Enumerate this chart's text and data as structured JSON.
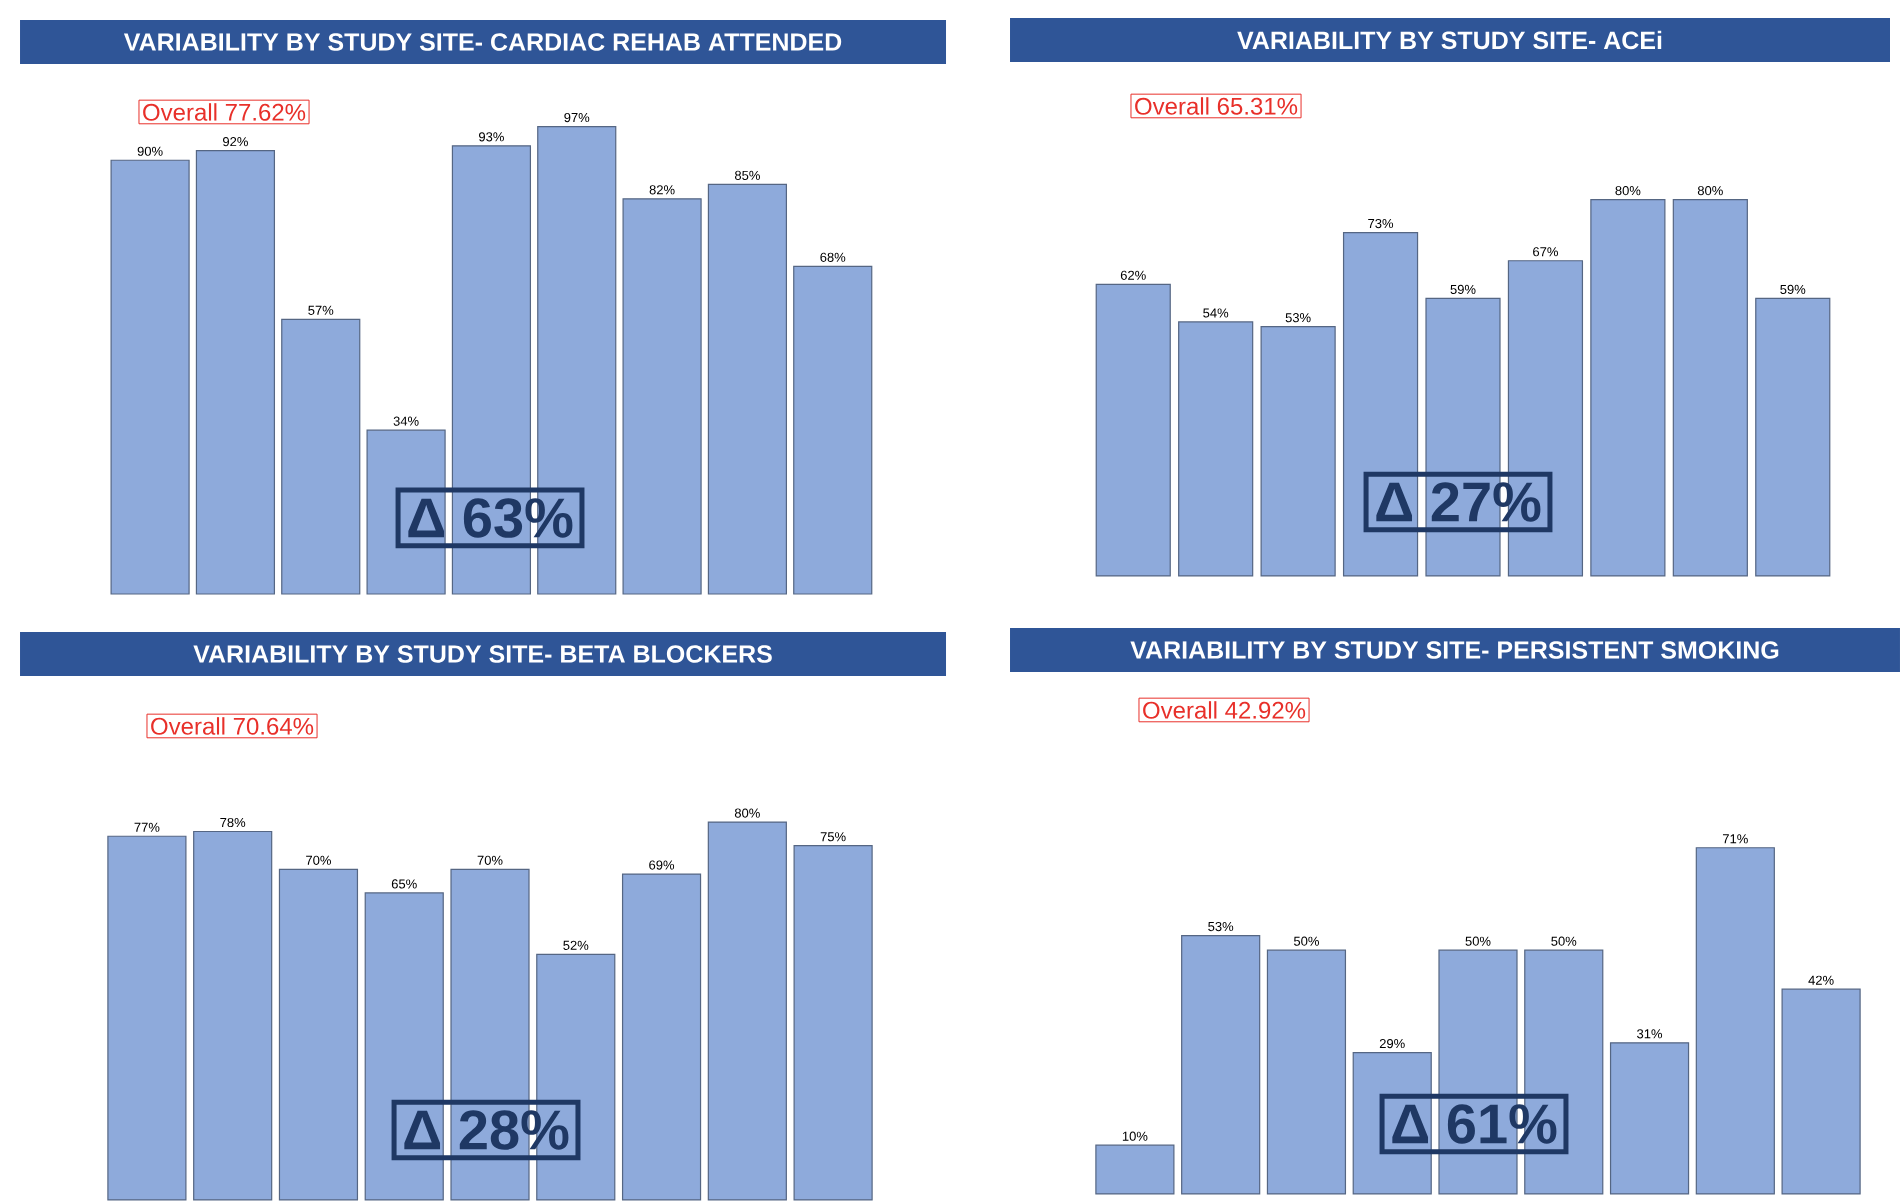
{
  "chart_data": [
    {
      "type": "bar",
      "title": "VARIABILITY BY STUDY SITE- CARDIAC REHAB ATTENDED",
      "categories": [
        null,
        null,
        null,
        null,
        null,
        null,
        null,
        null,
        null
      ],
      "values": [
        90,
        92,
        57,
        34,
        93,
        97,
        82,
        85,
        68
      ],
      "value_labels": [
        "90%",
        "92%",
        "57%",
        "34%",
        "93%",
        "97%",
        "82%",
        "85%",
        "68%"
      ],
      "color": "#8eaadb",
      "annotations": [
        "Overall 77.62%",
        "Δ 63%"
      ]
    },
    {
      "type": "bar",
      "title": "VARIABILITY BY STUDY SITE- ACEi",
      "categories": [
        null,
        null,
        null,
        null,
        null,
        null,
        null,
        null,
        null
      ],
      "values": [
        62,
        54,
        53,
        73,
        59,
        67,
        80,
        80,
        59
      ],
      "value_labels": [
        "62%",
        "54%",
        "53%",
        "73%",
        "59%",
        "67%",
        "80%",
        "80%",
        "59%"
      ],
      "color": "#8eaadb",
      "annotations": [
        "Overall 65.31%",
        "Δ 27%"
      ]
    },
    {
      "type": "bar",
      "title": "VARIABILITY BY STUDY SITE- BETA BLOCKERS",
      "categories": [
        null,
        null,
        null,
        null,
        null,
        null,
        null,
        null,
        null
      ],
      "values": [
        77,
        78,
        70,
        65,
        70,
        52,
        69,
        80,
        75
      ],
      "value_labels": [
        "77%",
        "78%",
        "70%",
        "65%",
        "70%",
        "52%",
        "69%",
        "80%",
        "75%"
      ],
      "color": "#8eaadb",
      "annotations": [
        "Overall 70.64%",
        "Δ 28%"
      ]
    },
    {
      "type": "bar",
      "title": "VARIABILITY BY STUDY SITE- PERSISTENT SMOKING",
      "categories": [
        null,
        null,
        null,
        null,
        null,
        null,
        null,
        null,
        null
      ],
      "values": [
        10,
        53,
        50,
        29,
        50,
        50,
        31,
        71,
        42
      ],
      "value_labels": [
        "10%",
        "53%",
        "50%",
        "29%",
        "50%",
        "50%",
        "31%",
        "71%",
        "42%"
      ],
      "color": "#8eaadb",
      "annotations": [
        "Overall 42.92%",
        "Δ 61%"
      ]
    }
  ]
}
